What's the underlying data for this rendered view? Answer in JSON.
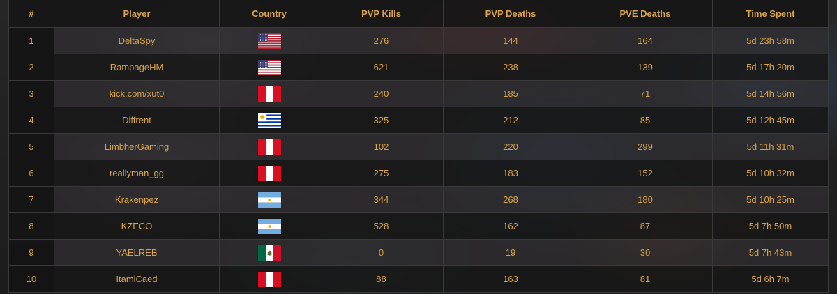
{
  "columns": [
    "#",
    "Player",
    "Country",
    "PVP Kills",
    "PVP Deaths",
    "PVE Deaths",
    "Time Spent"
  ],
  "rows": [
    {
      "rank": "1",
      "player": "DeltaSpy",
      "country": "us",
      "pvp_kills": "276",
      "pvp_deaths": "144",
      "pve_deaths": "164",
      "time_spent": "5d 23h 58m"
    },
    {
      "rank": "2",
      "player": "RampageHM",
      "country": "us",
      "pvp_kills": "621",
      "pvp_deaths": "238",
      "pve_deaths": "139",
      "time_spent": "5d 17h 20m"
    },
    {
      "rank": "3",
      "player": "kick.com/xut0",
      "country": "pe",
      "pvp_kills": "240",
      "pvp_deaths": "185",
      "pve_deaths": "71",
      "time_spent": "5d 14h 56m"
    },
    {
      "rank": "4",
      "player": "Diffrent",
      "country": "uy",
      "pvp_kills": "325",
      "pvp_deaths": "212",
      "pve_deaths": "85",
      "time_spent": "5d 12h 45m"
    },
    {
      "rank": "5",
      "player": "LimbherGaming",
      "country": "pe",
      "pvp_kills": "102",
      "pvp_deaths": "220",
      "pve_deaths": "299",
      "time_spent": "5d 11h 31m"
    },
    {
      "rank": "6",
      "player": "reallyman_gg",
      "country": "pe",
      "pvp_kills": "275",
      "pvp_deaths": "183",
      "pve_deaths": "152",
      "time_spent": "5d 10h 32m"
    },
    {
      "rank": "7",
      "player": "Krakenpez",
      "country": "ar",
      "pvp_kills": "344",
      "pvp_deaths": "268",
      "pve_deaths": "180",
      "time_spent": "5d 10h 25m"
    },
    {
      "rank": "8",
      "player": "KZECO",
      "country": "ar",
      "pvp_kills": "528",
      "pvp_deaths": "162",
      "pve_deaths": "87",
      "time_spent": "5d 7h 50m"
    },
    {
      "rank": "9",
      "player": "YAELREB",
      "country": "mx",
      "pvp_kills": "0",
      "pvp_deaths": "19",
      "pve_deaths": "30",
      "time_spent": "5d 7h 43m"
    },
    {
      "rank": "10",
      "player": "ItamiCaed",
      "country": "pe",
      "pvp_kills": "88",
      "pvp_deaths": "163",
      "pve_deaths": "81",
      "time_spent": "5d 6h 7m"
    }
  ],
  "colors": {
    "text": "#d9a44a",
    "border": "#3a3a3a"
  }
}
